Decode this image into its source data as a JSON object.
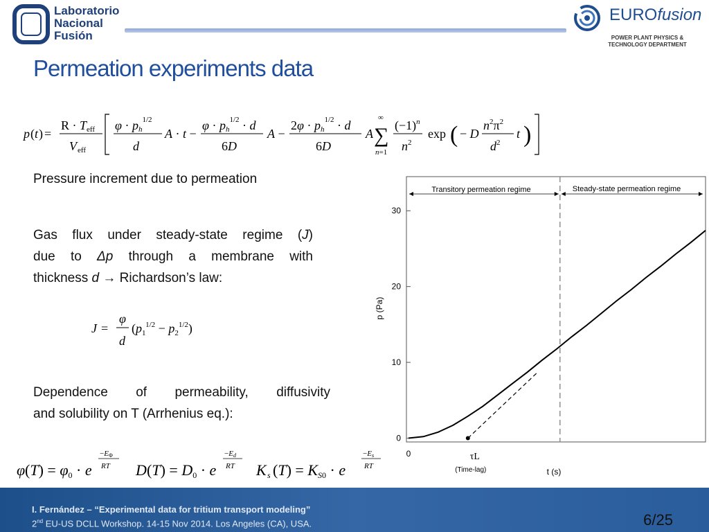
{
  "header": {
    "lab_logo_lines": [
      "Laboratorio",
      "Nacional",
      "Fusión"
    ],
    "eurofusion": {
      "word_regular": "EURO",
      "word_italic": "fusion",
      "dept_line1": "POWER PLANT PHYSICS &",
      "dept_line2": "TECHNOLOGY DEPARTMENT"
    },
    "accent_color": "#1f4e9c"
  },
  "title": "Permeation experiments data",
  "text": {
    "pressure_increment": "Pressure increment due to permeation",
    "gas_flux_l1": "Gas flux under steady-state regime (",
    "gas_flux_J": "J",
    "gas_flux_l1b": ")",
    "gas_flux_l2a": "due to ",
    "gas_flux_dp": "Δp",
    "gas_flux_l2b": " through a membrane with",
    "gas_flux_l3a": "thickness ",
    "gas_flux_d": "d",
    "gas_flux_arrow": "→",
    "gas_flux_l3b": " Richardson’s law:",
    "dependence_l1": "Dependence of permeability, diffusivity",
    "dependence_l2": "and solubility on T (Arrhenius eq.):"
  },
  "chart_data": {
    "type": "line",
    "title": "",
    "xlabel": "t (s)",
    "ylabel": "p (Pa)",
    "xlim": [
      0,
      10
    ],
    "ylim": [
      -0.5,
      34.5
    ],
    "yticks": [
      0,
      10,
      20,
      30
    ],
    "xticks": [
      0
    ],
    "regions": [
      {
        "label": "Transitory permeation regime",
        "x_end": 5.1
      },
      {
        "label": "Steady-state permeation regime",
        "x_start": 5.1
      }
    ],
    "divider_x": 5.1,
    "time_lag": {
      "x": 2.0,
      "label": "τL",
      "sublabel": "(Time-lag)"
    },
    "series": [
      {
        "values_x": [
          0,
          0.5,
          1,
          1.5,
          2,
          2.5,
          3,
          3.5,
          4,
          4.5,
          5,
          5.5,
          6,
          6.5,
          7,
          7.5,
          8,
          8.5,
          9,
          9.5,
          10
        ],
        "values_y": [
          0,
          0.2,
          0.8,
          1.7,
          2.9,
          4.2,
          5.7,
          7.2,
          8.7,
          10.3,
          11.8,
          13.4,
          14.9,
          16.5,
          18.1,
          19.6,
          21.2,
          22.7,
          24.3,
          25.8,
          27.4
        ],
        "style": "solid"
      },
      {
        "values_x": [
          2,
          4.35
        ],
        "values_y": [
          0,
          8.7
        ],
        "style": "dashed"
      }
    ]
  },
  "footer": {
    "line1_author": "I. Fernández – ",
    "line1_title": "“Experimental data for tritium transport modeling”",
    "line2_sup": "nd",
    "line2_pre": "2",
    "line2_rest": " EU-US DCLL Workshop. 14-15 Nov 2014. Los Angeles (CA), USA.",
    "page": "6/25"
  }
}
